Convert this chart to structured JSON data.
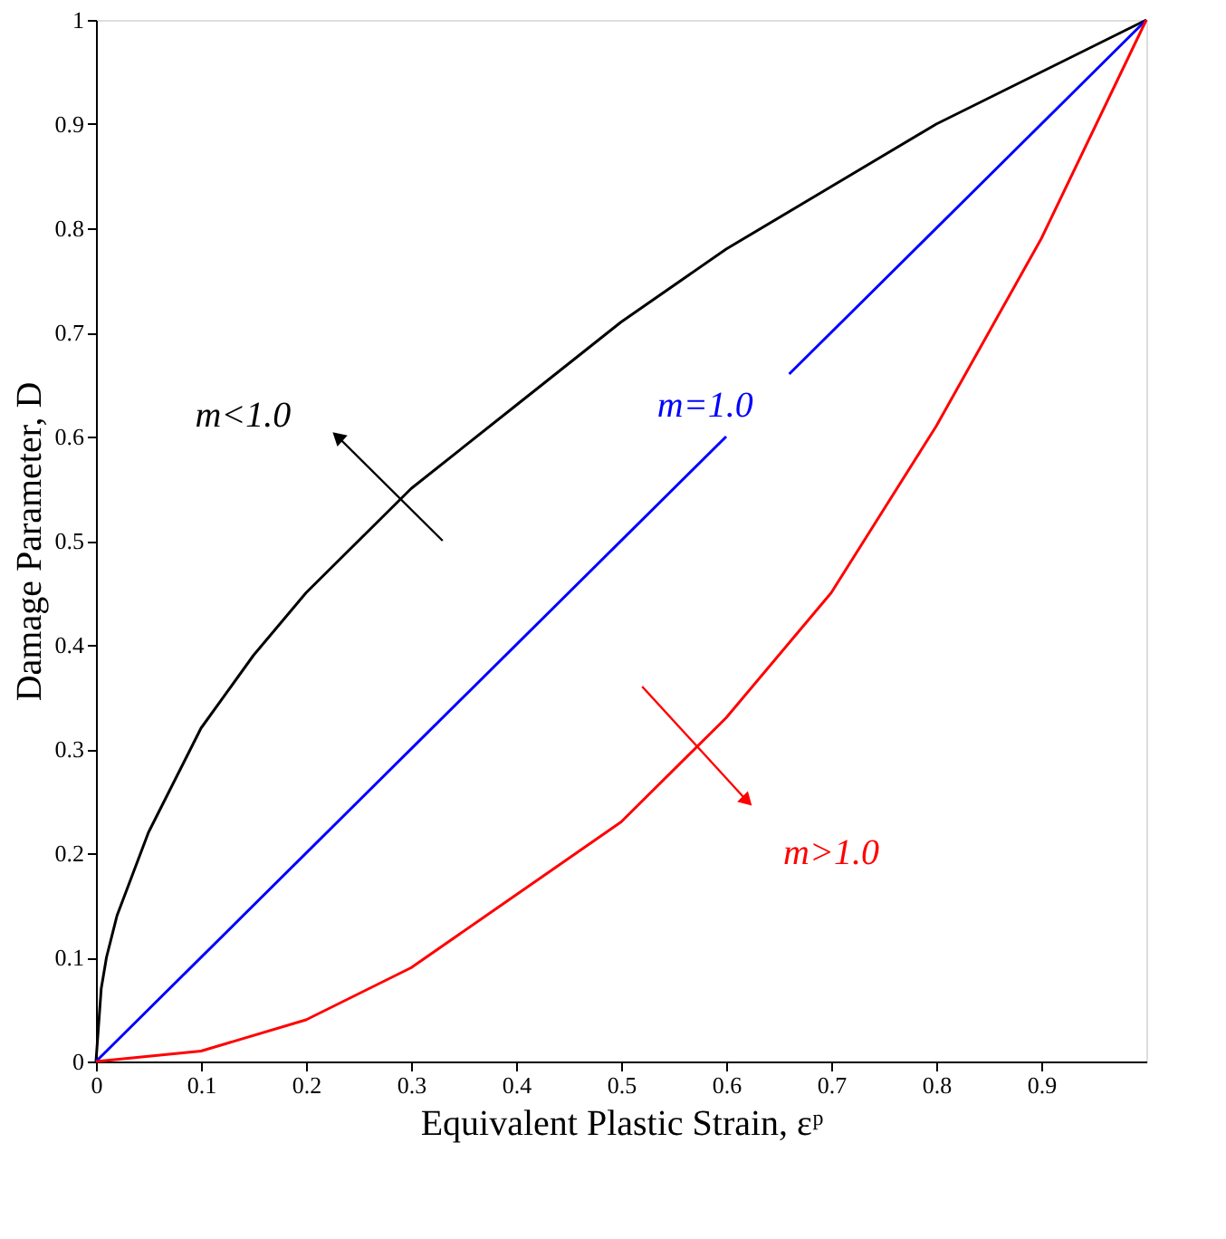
{
  "chart_data": {
    "type": "line",
    "xlabel": "Equivalent Plastic Strain, εᵖ",
    "ylabel": "Damage Parameter, D",
    "xlim": [
      0,
      1
    ],
    "ylim": [
      0,
      1
    ],
    "xticks": [
      0,
      0.1,
      0.2,
      0.3,
      0.4,
      0.5,
      0.6,
      0.7,
      0.8,
      0.9
    ],
    "yticks": [
      0,
      0.1,
      0.2,
      0.3,
      0.4,
      0.5,
      0.6,
      0.7,
      0.8,
      0.9,
      1
    ],
    "grid": false,
    "marker": "none",
    "line_style": "solid",
    "series": [
      {
        "color": "#000000",
        "x": [
          0,
          0.005,
          0.01,
          0.02,
          0.05,
          0.1,
          0.15,
          0.2,
          0.3,
          0.4,
          0.5,
          0.6,
          0.7,
          0.8,
          0.9,
          1
        ],
        "values": [
          0,
          0.07,
          0.1,
          0.14,
          0.22,
          0.32,
          0.39,
          0.45,
          0.55,
          0.63,
          0.71,
          0.78,
          0.84,
          0.9,
          0.95,
          1
        ]
      },
      {
        "color": "#0000ff",
        "x": [
          0,
          0.6,
          0.63,
          0.66,
          1
        ],
        "values": [
          0,
          0.6,
          null,
          0.66,
          1
        ]
      },
      {
        "color": "#ff0000",
        "x": [
          0,
          0.1,
          0.2,
          0.3,
          0.4,
          0.5,
          0.6,
          0.7,
          0.8,
          0.9,
          1
        ],
        "values": [
          0,
          0.01,
          0.04,
          0.09,
          0.16,
          0.23,
          0.33,
          0.45,
          0.61,
          0.79,
          1
        ]
      }
    ],
    "annotations": [
      "m<1.0",
      "m=1.0",
      "m>1.0"
    ]
  }
}
